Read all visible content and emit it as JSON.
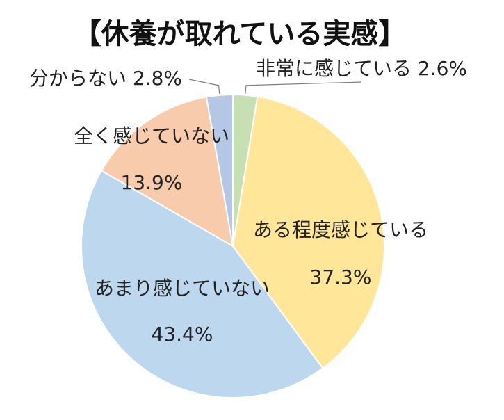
{
  "chart_data": {
    "type": "pie",
    "title": "【休養が取れている実感】",
    "slices": [
      {
        "label": "非常に感じている",
        "value": 2.6,
        "value_label": "2.6%",
        "color": "#c6e0b4"
      },
      {
        "label": "ある程度感じている",
        "value": 37.3,
        "value_label": "37.3%",
        "color": "#ffe699"
      },
      {
        "label": "あまり感じていない",
        "value": 43.4,
        "value_label": "43.4%",
        "color": "#bdd7ee"
      },
      {
        "label": "全く感じていない",
        "value": 13.9,
        "value_label": "13.9%",
        "color": "#f8cbad"
      },
      {
        "label": "分からない",
        "value": 2.8,
        "value_label": "2.8%",
        "color": "#b4c7e7"
      }
    ],
    "start_angle": "12 o'clock",
    "direction": "clockwise",
    "legend": "none"
  }
}
